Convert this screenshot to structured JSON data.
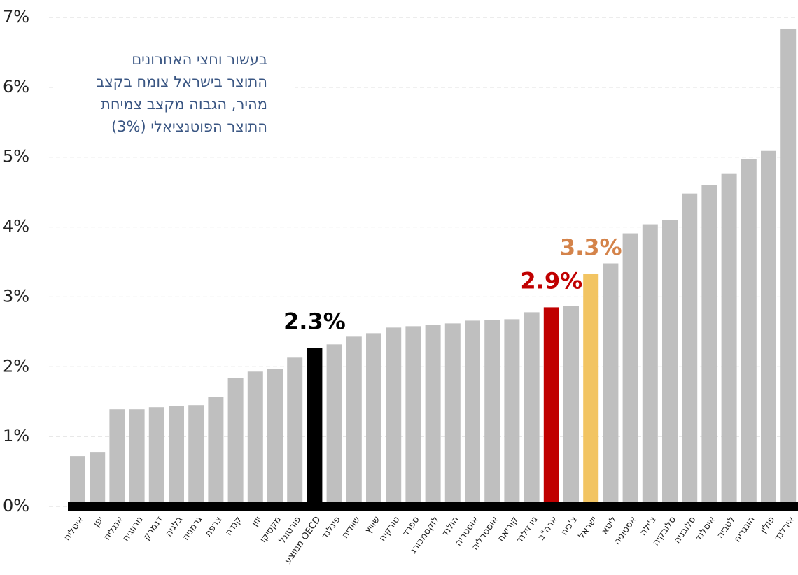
{
  "chart_data": {
    "type": "bar",
    "categories": [
      "איטליה",
      "יפן",
      "אנגליה",
      "נורווגיה",
      "דנמרק",
      "בלגיה",
      "גרמניה",
      "צרפת",
      "קנדה",
      "יוון",
      "מקסיקו",
      "פורטוגל",
      "ממוצע OECD",
      "פינלנד",
      "שוודיה",
      "שוויץ",
      "טורקיה",
      "ספרד",
      "לוקסמבורג",
      "הולנד",
      "אוסטריה",
      "אוסטרליה",
      "קוריאה",
      "ניו זילנד",
      "ארה\"ב",
      "צ'כיה",
      "ישראל",
      "ליטא",
      "אסטוניה",
      "צ'ילה",
      "סלובקיה",
      "סלובניה",
      "איסלנד",
      "לטביה",
      "הונגריה",
      "פולין",
      "אירלנד"
    ],
    "values": [
      0.72,
      0.78,
      1.39,
      1.39,
      1.42,
      1.44,
      1.45,
      1.57,
      1.84,
      1.93,
      1.97,
      2.13,
      2.27,
      2.32,
      2.43,
      2.48,
      2.56,
      2.58,
      2.6,
      2.62,
      2.66,
      2.67,
      2.68,
      2.78,
      2.85,
      2.87,
      3.33,
      3.48,
      3.91,
      4.04,
      4.1,
      4.48,
      4.6,
      4.76,
      4.97,
      5.09,
      6.84
    ],
    "colors": [
      "#bfbfbf",
      "#bfbfbf",
      "#bfbfbf",
      "#bfbfbf",
      "#bfbfbf",
      "#bfbfbf",
      "#bfbfbf",
      "#bfbfbf",
      "#bfbfbf",
      "#bfbfbf",
      "#bfbfbf",
      "#bfbfbf",
      "#000000",
      "#bfbfbf",
      "#bfbfbf",
      "#bfbfbf",
      "#bfbfbf",
      "#bfbfbf",
      "#bfbfbf",
      "#bfbfbf",
      "#bfbfbf",
      "#bfbfbf",
      "#bfbfbf",
      "#bfbfbf",
      "#c00000",
      "#bfbfbf",
      "#f2c462",
      "#bfbfbf",
      "#bfbfbf",
      "#bfbfbf",
      "#bfbfbf",
      "#bfbfbf",
      "#bfbfbf",
      "#bfbfbf",
      "#bfbfbf",
      "#bfbfbf",
      "#bfbfbf"
    ],
    "value_labels": [
      null,
      null,
      null,
      null,
      null,
      null,
      null,
      null,
      null,
      null,
      null,
      null,
      "2.3%",
      null,
      null,
      null,
      null,
      null,
      null,
      null,
      null,
      null,
      null,
      null,
      "2.9%",
      null,
      "3.3%",
      null,
      null,
      null,
      null,
      null,
      null,
      null,
      null,
      null,
      null
    ],
    "value_label_colors": [
      null,
      null,
      null,
      null,
      null,
      null,
      null,
      null,
      null,
      null,
      null,
      null,
      "#000000",
      null,
      null,
      null,
      null,
      null,
      null,
      null,
      null,
      null,
      null,
      null,
      "#c00000",
      null,
      "#d4834a",
      null,
      null,
      null,
      null,
      null,
      null,
      null,
      null,
      null,
      null
    ],
    "ylim": [
      0,
      7
    ],
    "yticks": [
      {
        "value": 0,
        "label": "0%"
      },
      {
        "value": 1,
        "label": "1%"
      },
      {
        "value": 2,
        "label": "2%"
      },
      {
        "value": 3,
        "label": "3%"
      },
      {
        "value": 4,
        "label": "4%"
      },
      {
        "value": 5,
        "label": "5%"
      },
      {
        "value": 6,
        "label": "6%"
      },
      {
        "value": 7,
        "label": "7%"
      }
    ],
    "grid": true,
    "annotation": [
      "בעשור וחצי האחרונים",
      "התוצר בישראל צומח בקצב",
      "מהיר, הגבוה מקצב צמיחת",
      "התוצר הפוטנציאלי (3%)"
    ]
  }
}
